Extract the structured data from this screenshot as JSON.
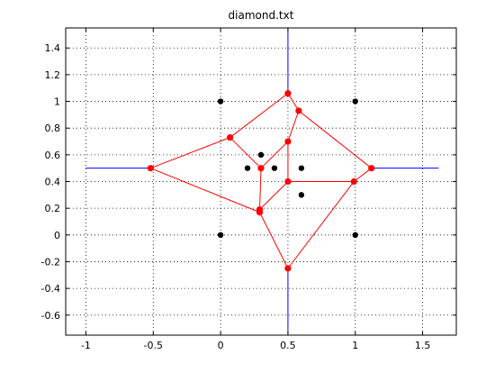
{
  "chart_data": {
    "type": "scatter",
    "title": "diamond.txt",
    "xlabel": "",
    "ylabel": "",
    "xlim": [
      -1.15,
      1.75
    ],
    "ylim": [
      -0.75,
      1.55
    ],
    "xticks": [
      -1,
      -0.5,
      0,
      0.5,
      1,
      1.5
    ],
    "yticks": [
      -0.6,
      -0.4,
      -0.2,
      0,
      0.2,
      0.4,
      0.6,
      0.8,
      1,
      1.2,
      1.4
    ],
    "xtick_labels": [
      "-1",
      "-0.5",
      "0",
      "0.5",
      "1",
      "1.5"
    ],
    "ytick_labels": [
      "-0.6",
      "-0.4",
      "-0.2",
      "0",
      "0.2",
      "0.4",
      "0.6",
      "0.8",
      "1",
      "1.2",
      "1.4"
    ],
    "grid": true,
    "colors": {
      "points": "#000000",
      "vertices": "#ff0000",
      "edges": "#ff0000",
      "rays": "#0000ff"
    },
    "points": [
      [
        0,
        1
      ],
      [
        1,
        1
      ],
      [
        0,
        0
      ],
      [
        1,
        0
      ],
      [
        0.3,
        0.6
      ],
      [
        0.2,
        0.5
      ],
      [
        0.4,
        0.5
      ],
      [
        0.6,
        0.5
      ],
      [
        0.6,
        0.3
      ]
    ],
    "vertices": [
      [
        0.5,
        1.06
      ],
      [
        0.58,
        0.93
      ],
      [
        0.07,
        0.73
      ],
      [
        0.5,
        0.7
      ],
      [
        0.3,
        0.5
      ],
      [
        -0.52,
        0.5
      ],
      [
        1.12,
        0.5
      ],
      [
        0.5,
        0.4
      ],
      [
        0.99,
        0.4
      ],
      [
        0.29,
        0.19
      ],
      [
        0.29,
        0.17
      ],
      [
        0.5,
        -0.25
      ]
    ],
    "edges": [
      [
        [
          0.5,
          1.06
        ],
        [
          0.07,
          0.73
        ]
      ],
      [
        [
          0.5,
          1.06
        ],
        [
          0.58,
          0.93
        ]
      ],
      [
        [
          0.58,
          0.93
        ],
        [
          1.12,
          0.5
        ]
      ],
      [
        [
          0.58,
          0.93
        ],
        [
          0.5,
          0.7
        ]
      ],
      [
        [
          0.07,
          0.73
        ],
        [
          -0.52,
          0.5
        ]
      ],
      [
        [
          0.07,
          0.73
        ],
        [
          0.3,
          0.5
        ]
      ],
      [
        [
          0.5,
          0.7
        ],
        [
          0.3,
          0.5
        ]
      ],
      [
        [
          0.5,
          0.7
        ],
        [
          0.5,
          0.4
        ]
      ],
      [
        [
          0.3,
          0.5
        ],
        [
          0.29,
          0.19
        ]
      ],
      [
        [
          -0.52,
          0.5
        ],
        [
          0.29,
          0.17
        ]
      ],
      [
        [
          0.5,
          0.4
        ],
        [
          0.99,
          0.4
        ]
      ],
      [
        [
          0.5,
          0.4
        ],
        [
          0.29,
          0.19
        ]
      ],
      [
        [
          0.99,
          0.4
        ],
        [
          1.12,
          0.5
        ]
      ],
      [
        [
          0.99,
          0.4
        ],
        [
          0.5,
          -0.25
        ]
      ],
      [
        [
          0.29,
          0.17
        ],
        [
          0.5,
          -0.25
        ]
      ],
      [
        [
          0.29,
          0.19
        ],
        [
          0.29,
          0.17
        ]
      ]
    ],
    "rays": [
      [
        [
          0.5,
          1.06
        ],
        [
          0.5,
          1.55
        ]
      ],
      [
        [
          -0.52,
          0.5
        ],
        [
          -1.0,
          0.5
        ]
      ],
      [
        [
          1.12,
          0.5
        ],
        [
          1.62,
          0.5
        ]
      ],
      [
        [
          0.5,
          -0.25
        ],
        [
          0.5,
          -0.75
        ]
      ]
    ]
  }
}
